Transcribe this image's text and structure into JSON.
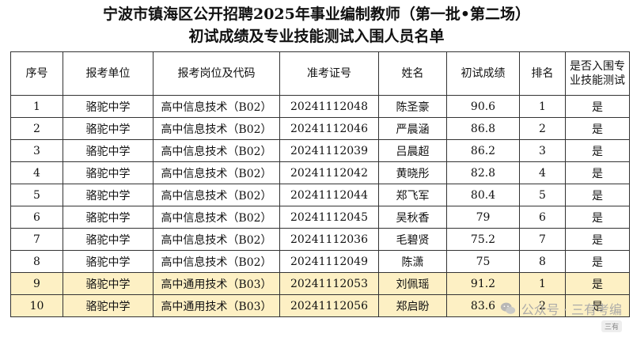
{
  "title_line1": "宁波市镇海区公开招聘2025年事业编制教师（第一批•第二场）",
  "title_line2": "初试成绩及专业技能测试入围人员名单",
  "headers": [
    "序号",
    "报考单位",
    "报考岗位及代码",
    "准考证号",
    "姓名",
    "初试成绩",
    "排名",
    "是否入围专业技能测试"
  ],
  "rows": [
    [
      "1",
      "骆驼中学",
      "高中信息技术（B02）",
      "20241112048",
      "陈圣豪",
      "90.6",
      "1",
      "是"
    ],
    [
      "2",
      "骆驼中学",
      "高中信息技术（B02）",
      "20241112046",
      "严晨涵",
      "86.8",
      "2",
      "是"
    ],
    [
      "3",
      "骆驼中学",
      "高中信息技术（B02）",
      "20241112039",
      "吕晨超",
      "86.2",
      "3",
      "是"
    ],
    [
      "4",
      "骆驼中学",
      "高中信息技术（B02）",
      "20241112042",
      "黄晓彤",
      "82.8",
      "4",
      "是"
    ],
    [
      "5",
      "骆驼中学",
      "高中信息技术（B02）",
      "20241112044",
      "郑飞军",
      "80.4",
      "5",
      "是"
    ],
    [
      "6",
      "骆驼中学",
      "高中信息技术（B02）",
      "20241112045",
      "吴秋香",
      "79",
      "6",
      "是"
    ],
    [
      "7",
      "骆驼中学",
      "高中信息技术（B02）",
      "20241112036",
      "毛碧贤",
      "75.2",
      "7",
      "是"
    ],
    [
      "8",
      "骆驼中学",
      "高中信息技术（B02）",
      "20241112049",
      "陈潇",
      "75",
      "8",
      "是"
    ],
    [
      "9",
      "骆驼中学",
      "高中通用技术（B03）",
      "20241112053",
      "刘佩瑶",
      "91.2",
      "1",
      "是"
    ],
    [
      "10",
      "骆驼中学",
      "高中通用技术（B03）",
      "20241112056",
      "郑启盼",
      "83.6",
      "2",
      "是"
    ]
  ],
  "highlight_color": "#fdf0c4",
  "watermark": "公众号 · 三有考编",
  "watermark_tag": "三有"
}
